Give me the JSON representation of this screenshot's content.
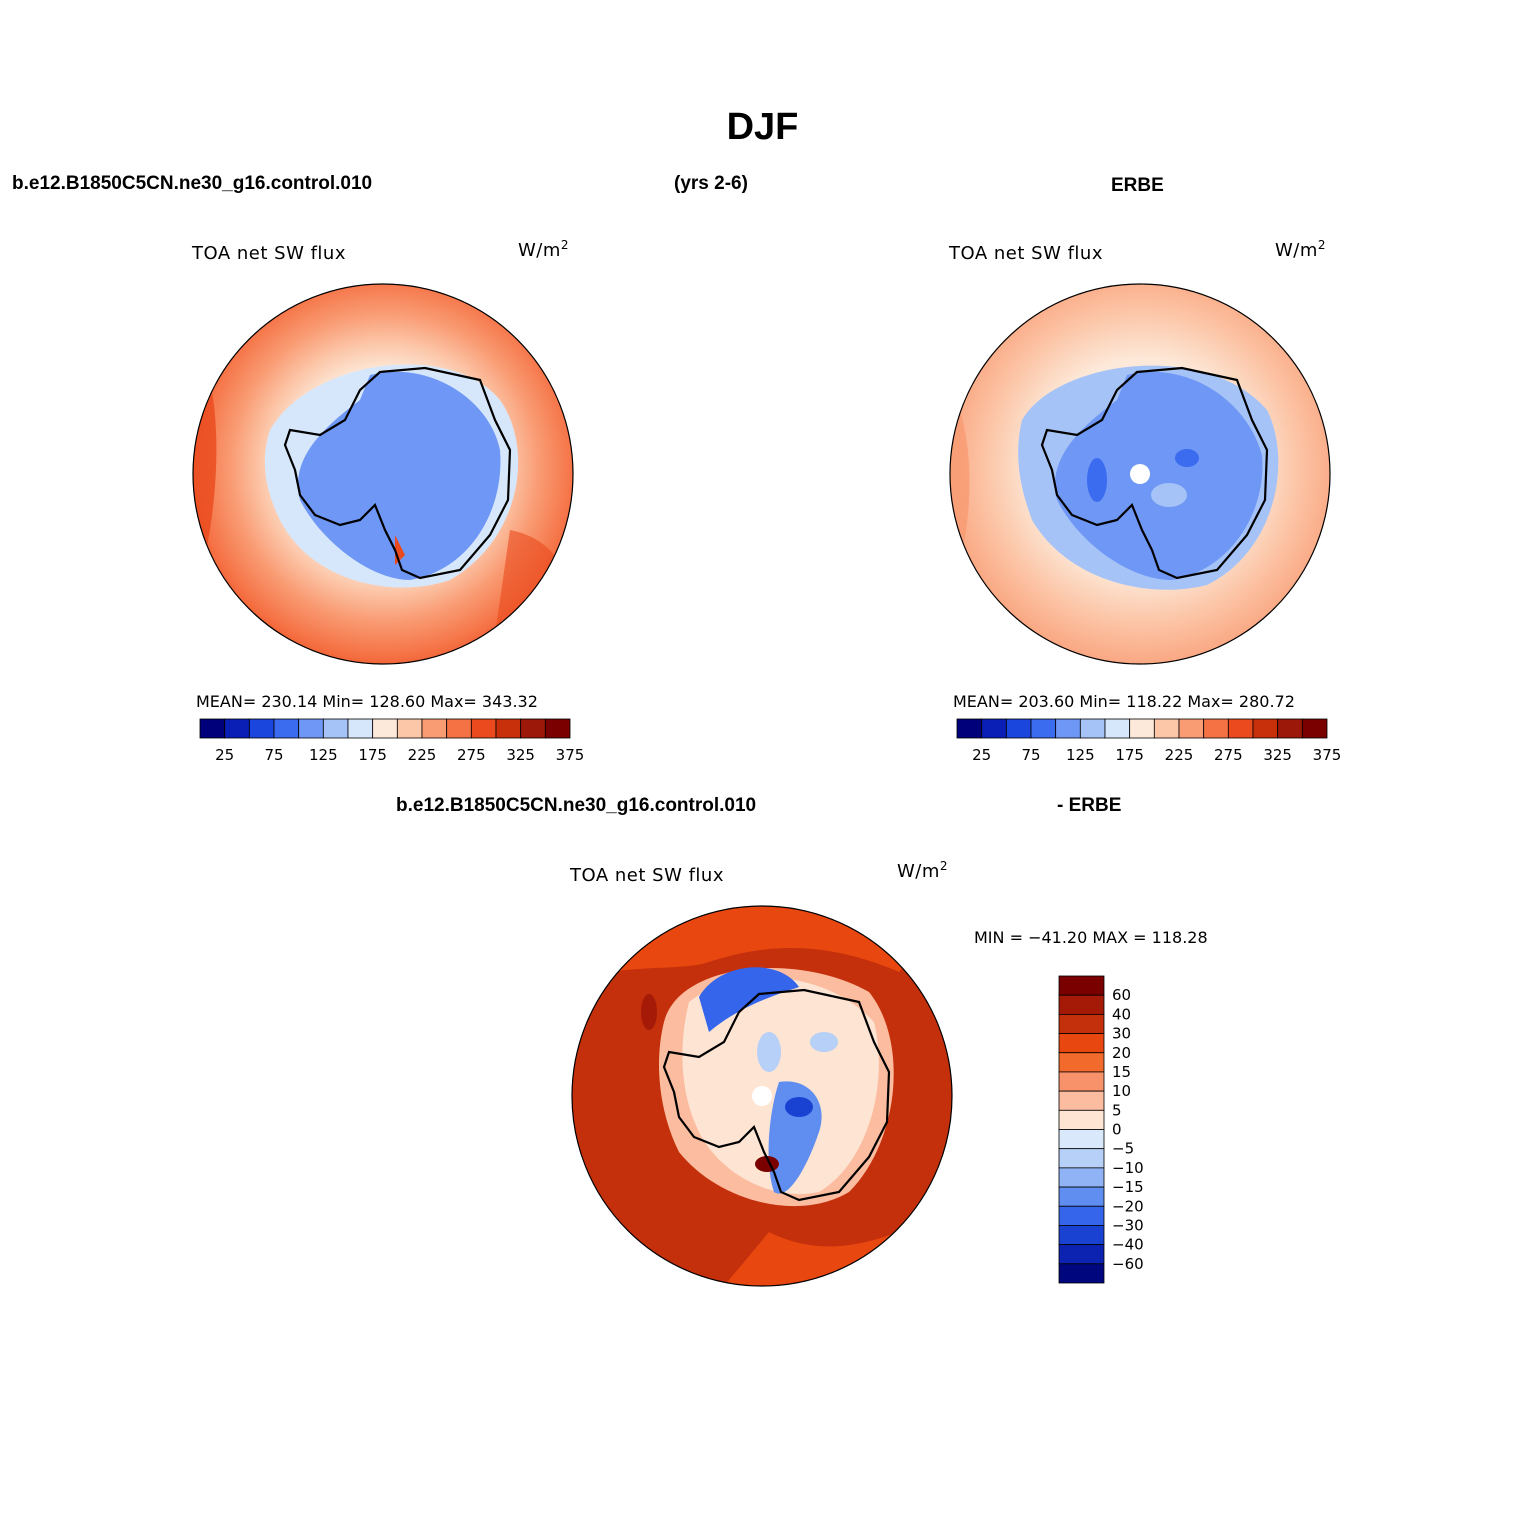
{
  "title": "DJF",
  "headers": {
    "case_name": "b.e12.B1850C5CN.ne30_g16.control.010",
    "years": "(yrs 2-6)",
    "obs_name": "ERBE",
    "diff_case": "b.e12.B1850C5CN.ne30_g16.control.010",
    "diff_obs": "- ERBE"
  },
  "panels": [
    {
      "label": "TOA net SW flux",
      "units": "W/m",
      "units_sup": "2",
      "stats": "MEAN= 230.14   Min= 128.60   Max= 343.32"
    },
    {
      "label": "TOA net SW flux",
      "units": "W/m",
      "units_sup": "2",
      "stats": "MEAN= 203.60   Min= 118.22   Max= 280.72"
    },
    {
      "label": "TOA net SW flux",
      "units": "W/m",
      "units_sup": "2",
      "stats": "MIN = −41.20 MAX = 118.28"
    }
  ],
  "horizontal_colorbar": {
    "colors": [
      "#00007a",
      "#0a1fb5",
      "#1a46dd",
      "#3b6cf0",
      "#6f97f5",
      "#a6c3f8",
      "#d6e7fb",
      "#fde9d9",
      "#fcc6a8",
      "#f99b73",
      "#f57245",
      "#ea4a1d",
      "#c8300c",
      "#9c1808",
      "#7a0000"
    ],
    "tick_labels": [
      "25",
      "75",
      "125",
      "175",
      "225",
      "275",
      "325",
      "375"
    ]
  },
  "vertical_colorbar": {
    "colors": [
      "#7a0000",
      "#a51a07",
      "#c4300b",
      "#e8470f",
      "#f26a2c",
      "#f7926a",
      "#fbbc9f",
      "#fde4d3",
      "#d9e9fb",
      "#b6d0f7",
      "#8fb3f4",
      "#5f8ef0",
      "#3465ea",
      "#1942d3",
      "#0c22b0",
      "#00077e"
    ],
    "tick_labels": [
      "60",
      "40",
      "30",
      "20",
      "15",
      "10",
      "5",
      "0",
      "−5",
      "−10",
      "−15",
      "−20",
      "−30",
      "−40",
      "−60"
    ]
  }
}
